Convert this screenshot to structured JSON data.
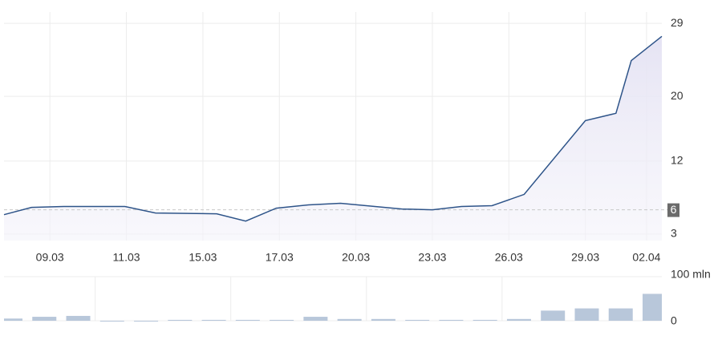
{
  "chart_data": [
    {
      "type": "line",
      "color": "#2e5489",
      "x": [
        0,
        1.8,
        3.9,
        7.9,
        9.9,
        13.9,
        15.8,
        17.8,
        19.9,
        22.0,
        26.0,
        28.0,
        29.9,
        31.9,
        34.0,
        38.0,
        40.0,
        41.0,
        43.0
      ],
      "values": [
        5.4,
        6.3,
        6.4,
        6.4,
        5.6,
        5.5,
        4.6,
        6.2,
        6.6,
        6.8,
        6.1,
        6.0,
        6.4,
        6.5,
        7.9,
        17.0,
        17.9,
        24.4,
        27.4
      ],
      "xlim": [
        0,
        43
      ],
      "xticks": [
        {
          "value": 3,
          "label": "09.03"
        },
        {
          "value": 8,
          "label": "11.03"
        },
        {
          "value": 13,
          "label": "15.03"
        },
        {
          "value": 18,
          "label": "17.03"
        },
        {
          "value": 23,
          "label": "20.03"
        },
        {
          "value": 28,
          "label": "23.03"
        },
        {
          "value": 33,
          "label": "26.03"
        },
        {
          "value": 38,
          "label": "29.03"
        },
        {
          "value": 42,
          "label": "02.04"
        }
      ],
      "ylim": [
        2.2,
        29.8
      ],
      "yticks": [
        3,
        12,
        20,
        29
      ],
      "reference": 6,
      "grid": true
    },
    {
      "type": "bar",
      "color": "#b8c7da",
      "values": [
        5,
        9,
        11,
        0,
        0,
        2,
        2,
        2,
        2,
        9,
        4,
        4,
        2,
        2,
        2,
        4,
        23,
        28,
        28,
        61
      ],
      "ylim": [
        0,
        100
      ],
      "yticks": [
        0,
        {
          "value": 100,
          "label": "100 mln"
        }
      ],
      "grid": true
    }
  ]
}
